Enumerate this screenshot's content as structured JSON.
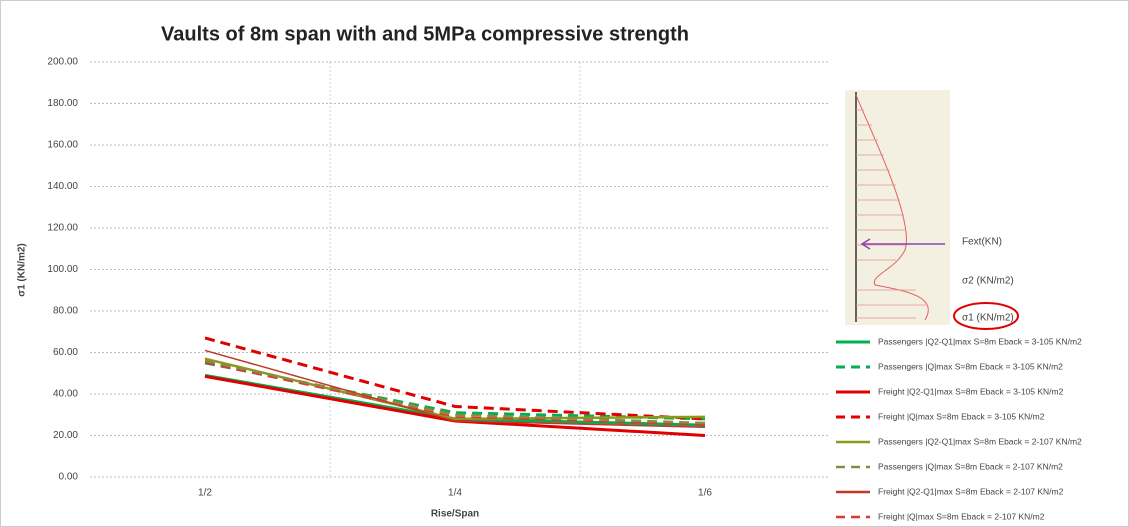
{
  "chart_data": {
    "type": "line",
    "title": "Vaults of 8m span with and 5MPa compressive strength",
    "x_label": "Rise/Span",
    "y_label": "σ1 (KN/m2)",
    "categories": [
      "1/2",
      "1/4",
      "1/6"
    ],
    "ylim": [
      0,
      200
    ],
    "yticks": [
      {
        "value": 0,
        "label": "0.00"
      },
      {
        "value": 20,
        "label": "20.00"
      },
      {
        "value": 40,
        "label": "40.00"
      },
      {
        "value": 60,
        "label": "60.00"
      },
      {
        "value": 80,
        "label": "80.00"
      },
      {
        "value": 100,
        "label": "100.00"
      },
      {
        "value": 120,
        "label": "120.00"
      },
      {
        "value": 140,
        "label": "140.00"
      },
      {
        "value": 160,
        "label": "160.00"
      },
      {
        "value": 180,
        "label": "180.00"
      },
      {
        "value": 200,
        "label": "200.00"
      }
    ],
    "grid": true,
    "series": [
      {
        "name": "Passengers |Q2-Q1|max S=8m Eback = 3-105 KN/m2",
        "color": "#00b050",
        "dash": false,
        "width": 3,
        "values": [
          49,
          28,
          25
        ]
      },
      {
        "name": "Passengers |Q|max S=8m Eback = 3-105 KN/m2",
        "color": "#00b050",
        "dash": true,
        "width": 3,
        "values": [
          55,
          31,
          28
        ]
      },
      {
        "name": "Freight |Q2-Q1|max S=8m Eback = 3-105 KN/m2",
        "color": "#e00000",
        "dash": false,
        "width": 3,
        "values": [
          48.5,
          27,
          20
        ]
      },
      {
        "name": "Freight |Q|max S=8m Eback = 3-105 KN/m2",
        "color": "#e00000",
        "dash": true,
        "width": 3,
        "values": [
          67,
          34,
          28
        ]
      },
      {
        "name": "Passengers |Q2-Q1|max S=8m Eback = 2-107 KN/m2",
        "color": "#8c9a1c",
        "dash": false,
        "width": 2.5,
        "values": [
          57,
          28,
          29
        ]
      },
      {
        "name": "Passengers |Q|max S=8m Eback = 2-107 KN/m2",
        "color": "#8c8a3c",
        "dash": true,
        "width": 2.5,
        "values": [
          56,
          30,
          26
        ]
      },
      {
        "name": "Freight |Q2-Q1|max S=8m Eback = 2-107 KN/m2",
        "color": "#c0392b",
        "dash": false,
        "width": 1.5,
        "values": [
          61,
          27,
          24
        ]
      },
      {
        "name": "Freight |Q|max S=8m Eback = 2-107 KN/m2",
        "color": "#d9383a",
        "dash": true,
        "width": 1.5,
        "values": [
          55,
          29,
          25
        ]
      }
    ],
    "annotations": [
      "Fext(KN)",
      "σ2 (KN/m2)",
      "σ1 (KN/m2)"
    ]
  }
}
